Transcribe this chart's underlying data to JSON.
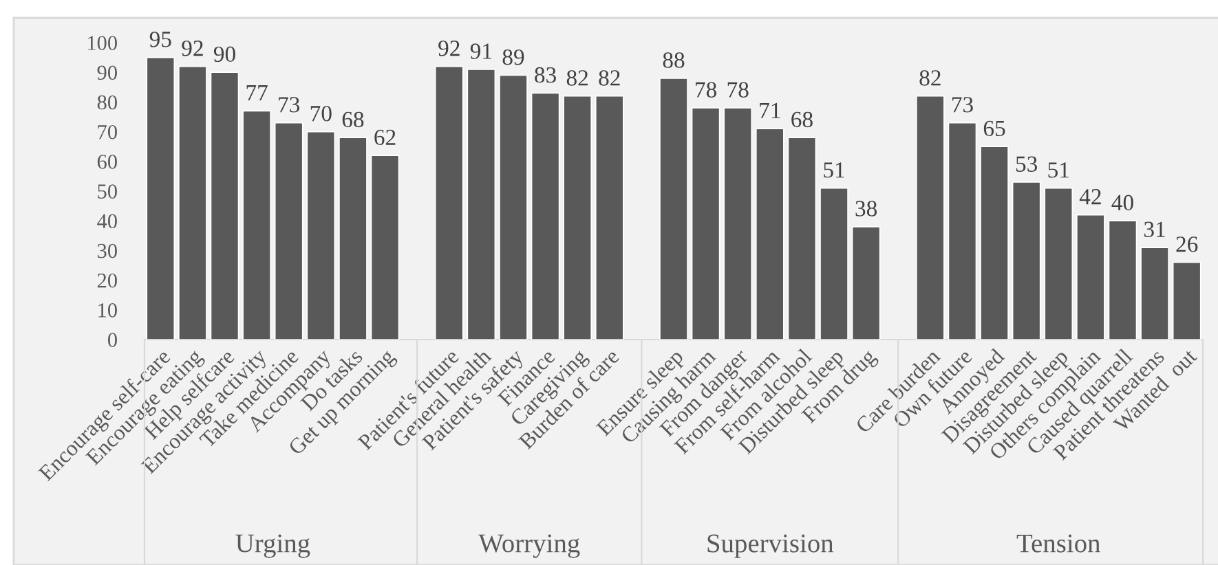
{
  "chart_data": {
    "type": "bar",
    "categories": [
      "Encourage self-care",
      "Encourage eating",
      "Help selfcare",
      "Encourage activity",
      "Take medicine",
      "Accompany",
      "Do tasks",
      "Get up morning",
      null,
      "Patient's future",
      "General health",
      "Patient's safety",
      "Finance",
      "Caregiving",
      "Burden of care",
      null,
      "Ensure sleep",
      "Causing harm",
      "From danger",
      "From self-harm",
      "From alcohol",
      "Disturbed sleep",
      "From drug",
      null,
      "Care burden",
      "Own future",
      "Annoyed",
      "Disagreement",
      "Disturbed sleep",
      "Others complain",
      "Caused quarrell",
      "Patient threatens",
      "Wanted  out"
    ],
    "values": [
      95,
      92,
      90,
      77,
      73,
      70,
      68,
      62,
      null,
      92,
      91,
      89,
      83,
      82,
      82,
      null,
      88,
      78,
      78,
      71,
      68,
      51,
      38,
      null,
      82,
      73,
      65,
      53,
      51,
      42,
      40,
      31,
      26
    ],
    "color": "#595959",
    "ylim": [
      0,
      100
    ],
    "yticks": [
      0,
      10,
      20,
      30,
      40,
      50,
      60,
      70,
      80,
      90,
      100
    ],
    "data_labels": true,
    "grid": false,
    "legend": false,
    "annotations": [
      "Urging",
      "Worrying",
      "Supervision",
      "Tension"
    ]
  }
}
